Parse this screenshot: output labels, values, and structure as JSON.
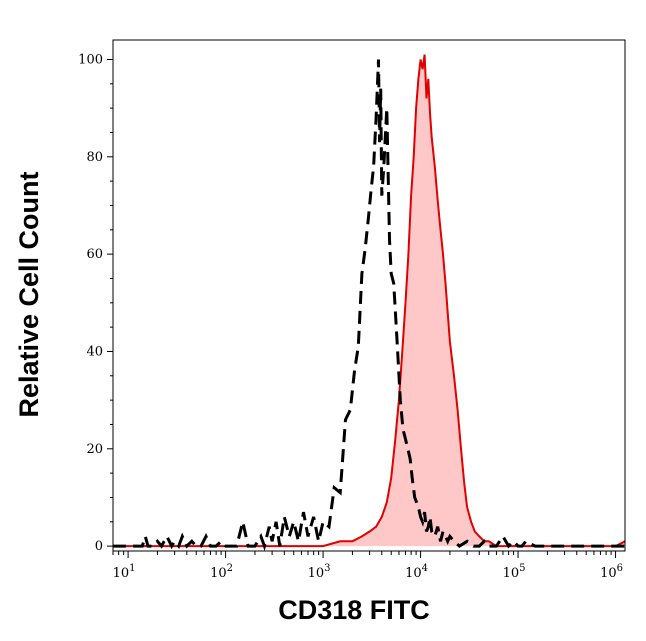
{
  "chart_data": {
    "type": "area",
    "xlabel": "CD318 FITC",
    "ylabel": "Relative Cell Count",
    "x_scale": "log",
    "xlim": [
      7,
      1250000
    ],
    "ylim": [
      -1,
      104
    ],
    "x_ticks": [
      {
        "base": "10",
        "exp": "1",
        "value": 10
      },
      {
        "base": "10",
        "exp": "2",
        "value": 100
      },
      {
        "base": "10",
        "exp": "3",
        "value": 1000
      },
      {
        "base": "10",
        "exp": "4",
        "value": 10000
      },
      {
        "base": "10",
        "exp": "5",
        "value": 100000
      },
      {
        "base": "10",
        "exp": "6",
        "value": 1000000
      }
    ],
    "y_ticks": [
      "0",
      "20",
      "40",
      "60",
      "80",
      "100"
    ],
    "y_tick_values": [
      0,
      20,
      40,
      60,
      80,
      100
    ],
    "grid": false,
    "legend": "none",
    "series": [
      {
        "style": "dashed",
        "color": "#000000",
        "fill": "none",
        "x": [
          7,
          14,
          15,
          16,
          18,
          20,
          22,
          25,
          28,
          30,
          33,
          36,
          40,
          45,
          50,
          56,
          63,
          70,
          80,
          90,
          100,
          130,
          150,
          170,
          200,
          230,
          250,
          280,
          300,
          330,
          360,
          400,
          450,
          500,
          560,
          630,
          700,
          800,
          900,
          1000,
          1150,
          1300,
          1500,
          1700,
          1900,
          2100,
          2300,
          2500,
          2700,
          2900,
          3100,
          3300,
          3500,
          3700,
          3800,
          3900,
          4000,
          4200,
          4500,
          4800,
          5000,
          5300,
          5600,
          5900,
          6200,
          6600,
          7000,
          7400,
          7800,
          8200,
          8700,
          9100,
          9500,
          10000,
          10500,
          11000,
          11500,
          12000,
          12500,
          13000,
          14000,
          15000,
          16000,
          17000,
          18000,
          19000,
          20000,
          22000,
          25000,
          30000,
          35000,
          40000,
          45000,
          50000,
          60000,
          70000,
          80000,
          90000,
          100000,
          110000,
          120000,
          150000,
          200000,
          300000,
          500000,
          1000000,
          1250000
        ],
        "y": [
          0,
          0,
          2,
          0,
          0,
          1,
          0,
          2,
          0,
          1,
          0,
          2,
          0,
          1,
          0,
          0,
          2,
          0,
          0,
          1,
          0,
          0,
          5,
          0,
          0,
          2,
          0,
          4,
          1,
          5,
          0,
          6,
          2,
          5,
          1,
          7,
          2,
          6,
          1,
          5,
          4,
          12,
          11,
          26,
          28,
          36,
          41,
          56,
          61,
          67,
          73,
          78,
          88,
          100,
          83,
          94,
          72,
          78,
          90,
          63,
          56,
          54,
          46,
          38,
          30,
          24,
          22,
          20,
          18,
          14,
          10,
          9,
          8,
          6,
          5,
          7,
          3,
          4,
          6,
          3,
          2,
          4,
          1,
          3,
          2,
          1,
          2,
          1,
          0,
          1,
          0,
          0,
          1,
          0,
          0,
          2,
          0,
          1,
          0,
          0,
          1,
          0,
          0,
          0,
          0,
          0,
          0
        ]
      },
      {
        "style": "solid",
        "color": "#e00000",
        "fill": "#ffc8c8",
        "x": [
          7,
          100,
          200,
          300,
          500,
          700,
          1000,
          1500,
          2000,
          2500,
          3000,
          3500,
          4000,
          4500,
          5000,
          5500,
          6000,
          6500,
          7000,
          7500,
          8000,
          8500,
          9000,
          9500,
          10000,
          10500,
          11000,
          11500,
          12000,
          12500,
          13000,
          14000,
          15000,
          16000,
          17000,
          18000,
          19000,
          20000,
          22000,
          24000,
          26000,
          28000,
          30000,
          33000,
          36000,
          40000,
          45000,
          50000,
          60000,
          70000,
          100000,
          200000,
          500000,
          1000000,
          1250000
        ],
        "y": [
          0,
          0,
          0,
          0,
          0,
          0,
          0,
          1,
          1,
          2,
          3,
          4,
          6,
          9,
          14,
          22,
          30,
          40,
          50,
          60,
          72,
          80,
          90,
          96,
          100,
          98,
          101,
          92,
          96,
          89,
          84,
          78,
          71,
          65,
          60,
          54,
          48,
          42,
          35,
          28,
          20,
          13,
          8,
          5,
          3,
          2,
          1,
          1,
          0,
          0,
          0,
          0,
          0,
          0,
          1
        ]
      }
    ]
  }
}
